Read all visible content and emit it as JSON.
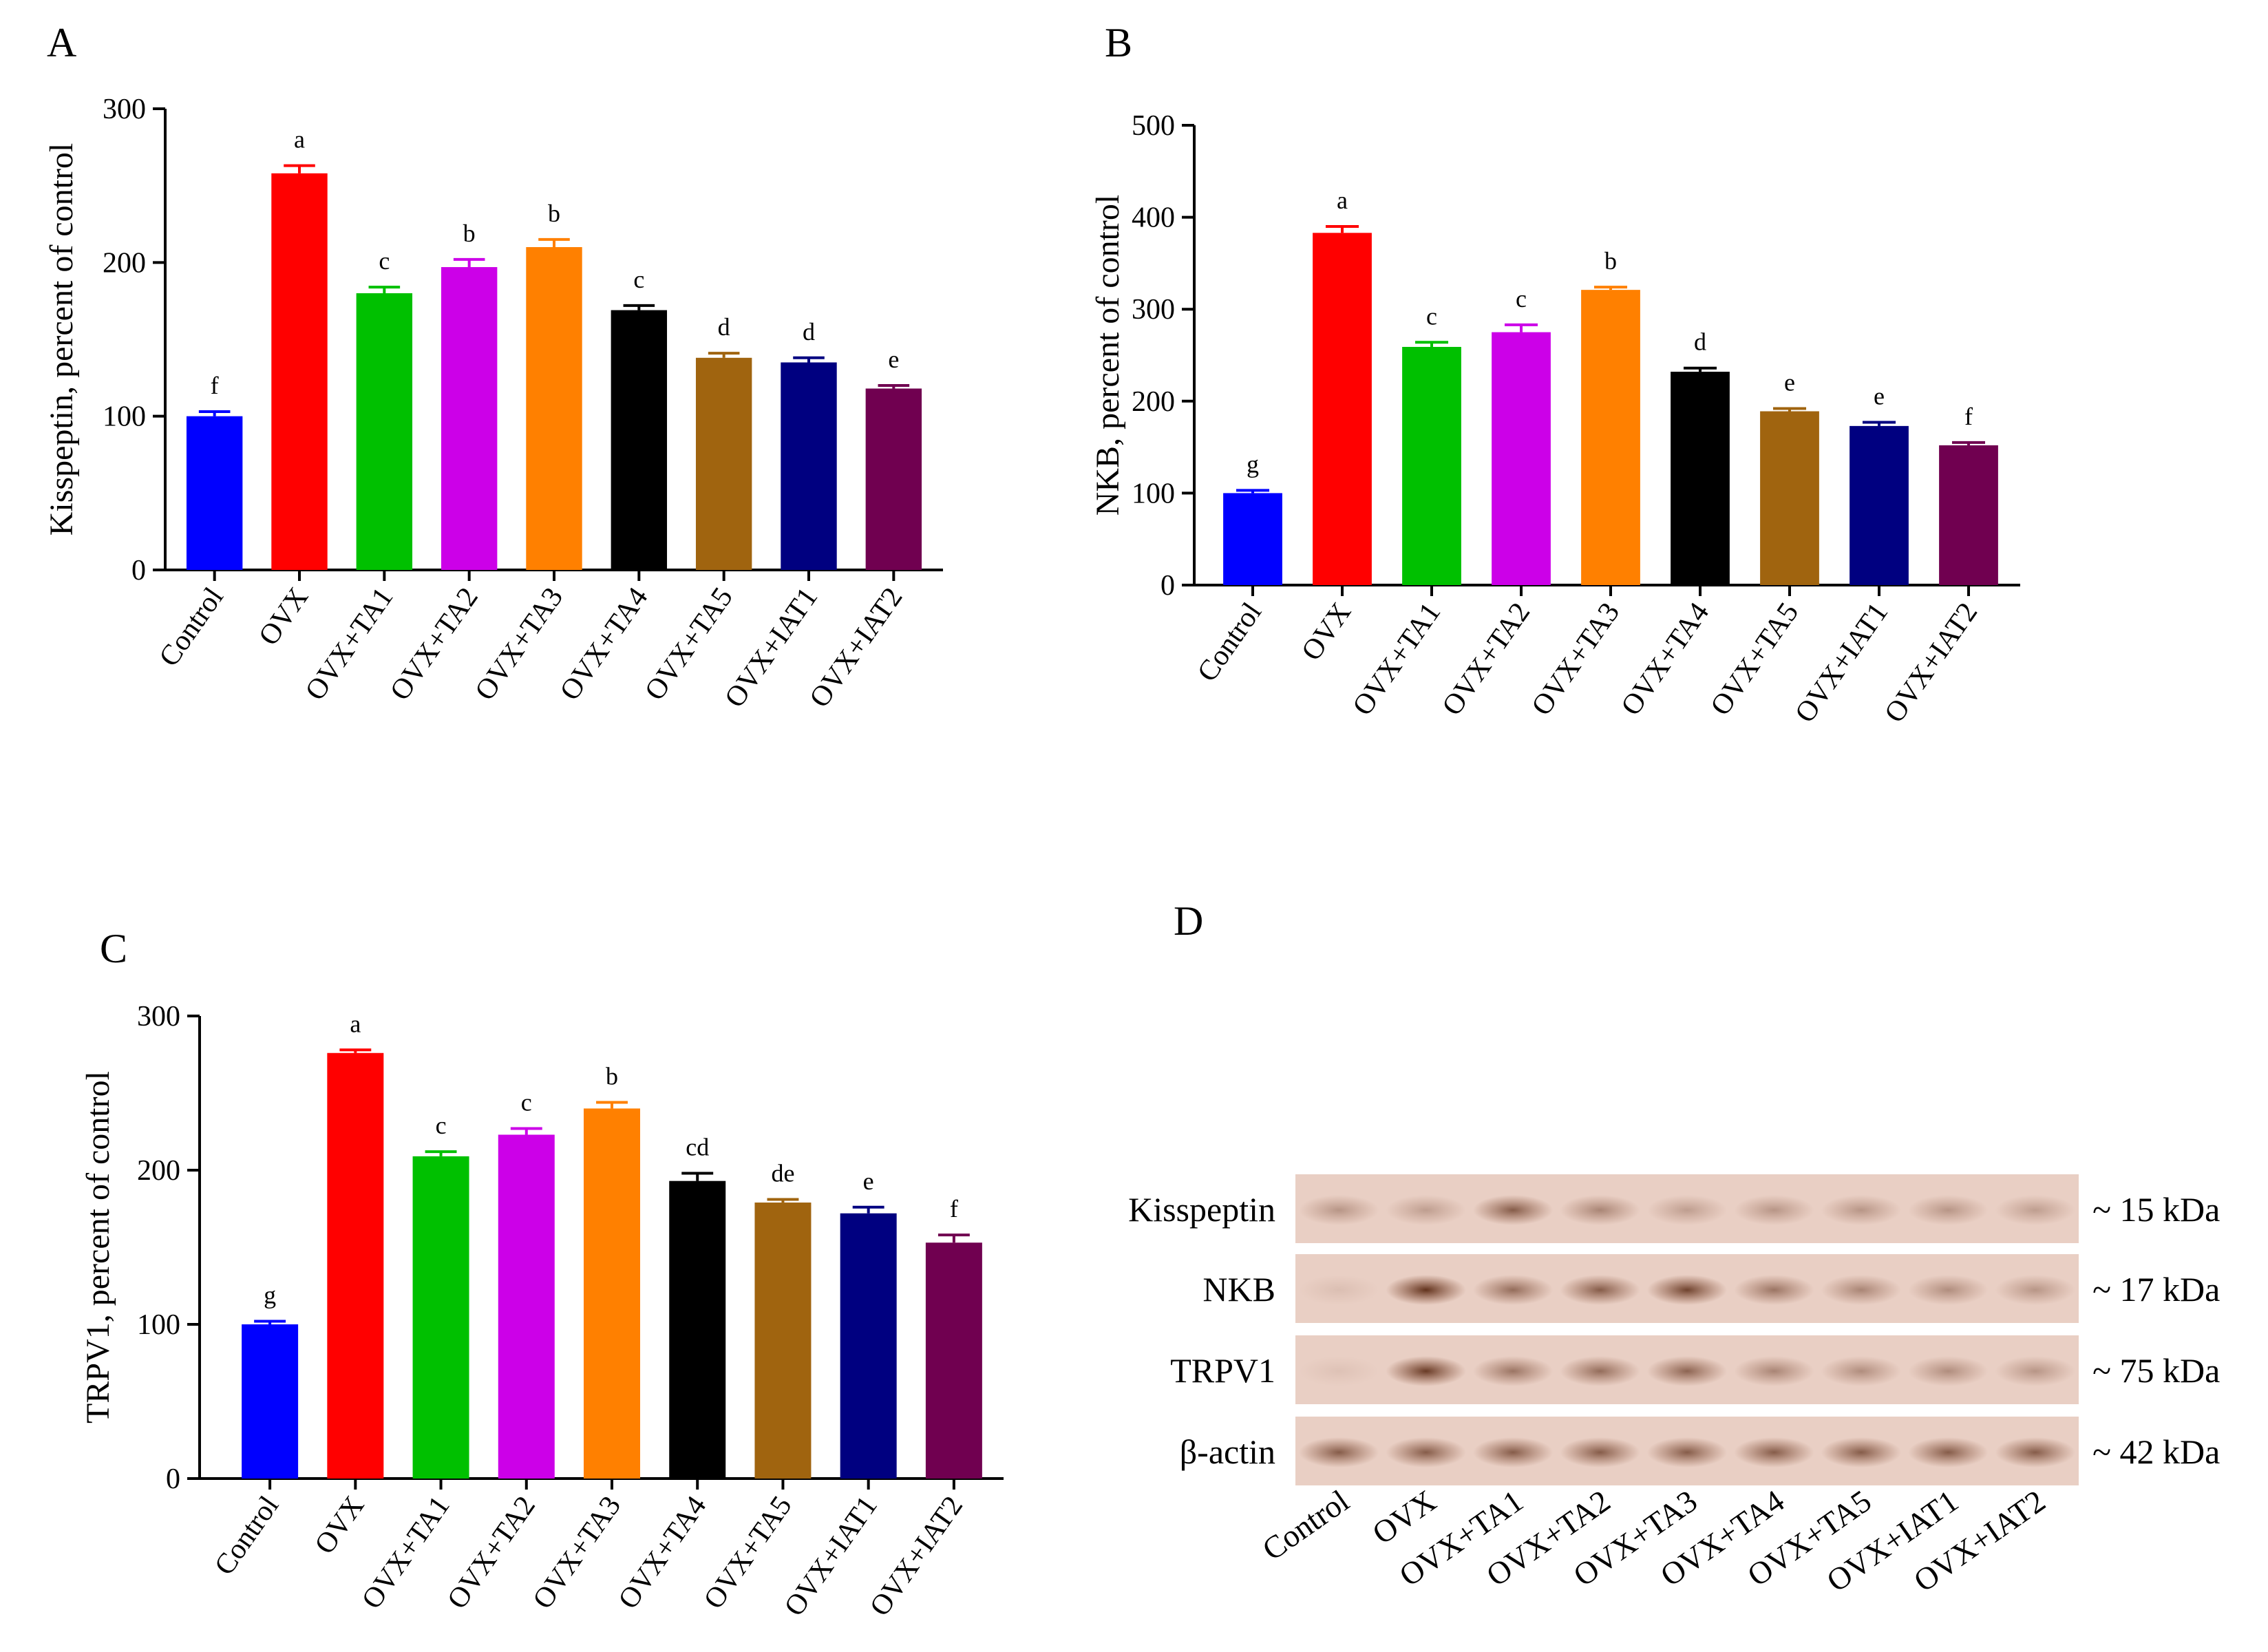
{
  "panel_letters": {
    "a": "A",
    "b": "B",
    "c": "C",
    "d": "D"
  },
  "colors": [
    "#0000ff",
    "#ff0000",
    "#00c000",
    "#cc00e8",
    "#ff8000",
    "#000000",
    "#a0640f",
    "#000080",
    "#700050"
  ],
  "chart_data": [
    {
      "type": "bar",
      "panel": "A",
      "title": "",
      "xlabel": "",
      "ylabel": "Kisspeptin, percent of control",
      "ylim": [
        0,
        300
      ],
      "yticks": [
        0,
        100,
        200,
        300
      ],
      "categories": [
        "Control",
        "OVX",
        "OVX+TA1",
        "OVX+TA2",
        "OVX+TA3",
        "OVX+TA4",
        "OVX+TA5",
        "OVX+IAT1",
        "OVX+IAT2"
      ],
      "values": [
        100,
        258,
        180,
        197,
        210,
        169,
        138,
        135,
        118
      ],
      "errors": [
        3,
        5,
        4,
        5,
        5,
        3,
        3,
        3,
        2
      ],
      "significance": [
        "f",
        "a",
        "c",
        "b",
        "b",
        "c",
        "d",
        "d",
        "e"
      ]
    },
    {
      "type": "bar",
      "panel": "B",
      "title": "",
      "xlabel": "",
      "ylabel": "NKB, percent of control",
      "ylim": [
        0,
        500
      ],
      "yticks": [
        0,
        100,
        200,
        300,
        400,
        500
      ],
      "categories": [
        "Control",
        "OVX",
        "OVX+TA1",
        "OVX+TA2",
        "OVX+TA3",
        "OVX+TA4",
        "OVX+TA5",
        "OVX+IAT1",
        "OVX+IAT2"
      ],
      "values": [
        100,
        383,
        259,
        275,
        321,
        232,
        189,
        173,
        152
      ],
      "errors": [
        3,
        7,
        5,
        8,
        3,
        4,
        3,
        4,
        3
      ],
      "significance": [
        "g",
        "a",
        "c",
        "c",
        "b",
        "d",
        "e",
        "e",
        "f"
      ]
    },
    {
      "type": "bar",
      "panel": "C",
      "title": "",
      "xlabel": "",
      "ylabel": "TRPV1, percent of control",
      "ylim": [
        0,
        300
      ],
      "yticks": [
        0,
        100,
        200,
        300
      ],
      "categories": [
        "Control",
        "OVX",
        "OVX+TA1",
        "OVX+TA2",
        "OVX+TA3",
        "OVX+TA4",
        "OVX+TA5",
        "OVX+IAT1",
        "OVX+IAT2"
      ],
      "values": [
        100,
        276,
        209,
        223,
        240,
        193,
        179,
        172,
        153
      ],
      "errors": [
        2,
        2,
        3,
        4,
        4,
        5,
        2,
        4,
        5
      ],
      "significance": [
        "g",
        "a",
        "c",
        "c",
        "b",
        "cd",
        "de",
        "e",
        "f"
      ]
    }
  ],
  "blot": {
    "rows": [
      {
        "label": "Kisspeptin",
        "size": "~ 15 kDa",
        "intensity": [
          0.35,
          0.3,
          0.7,
          0.45,
          0.3,
          0.35,
          0.35,
          0.35,
          0.3
        ]
      },
      {
        "label": "NKB",
        "size": "~ 17 kDa",
        "intensity": [
          0.1,
          0.95,
          0.6,
          0.7,
          0.85,
          0.55,
          0.45,
          0.4,
          0.35
        ]
      },
      {
        "label": "TRPV1",
        "size": "~ 75 kDa",
        "intensity": [
          0.05,
          0.9,
          0.55,
          0.6,
          0.65,
          0.45,
          0.4,
          0.4,
          0.35
        ]
      },
      {
        "label": "β-actin",
        "size": "~ 42 kDa",
        "intensity": [
          0.7,
          0.7,
          0.7,
          0.7,
          0.7,
          0.7,
          0.7,
          0.7,
          0.7
        ]
      }
    ],
    "lanes": [
      "Control",
      "OVX",
      "OVX+TA1",
      "OVX+TA2",
      "OVX+TA3",
      "OVX+TA4",
      "OVX+TA5",
      "OVX+IAT1",
      "OVX+IAT2"
    ]
  }
}
